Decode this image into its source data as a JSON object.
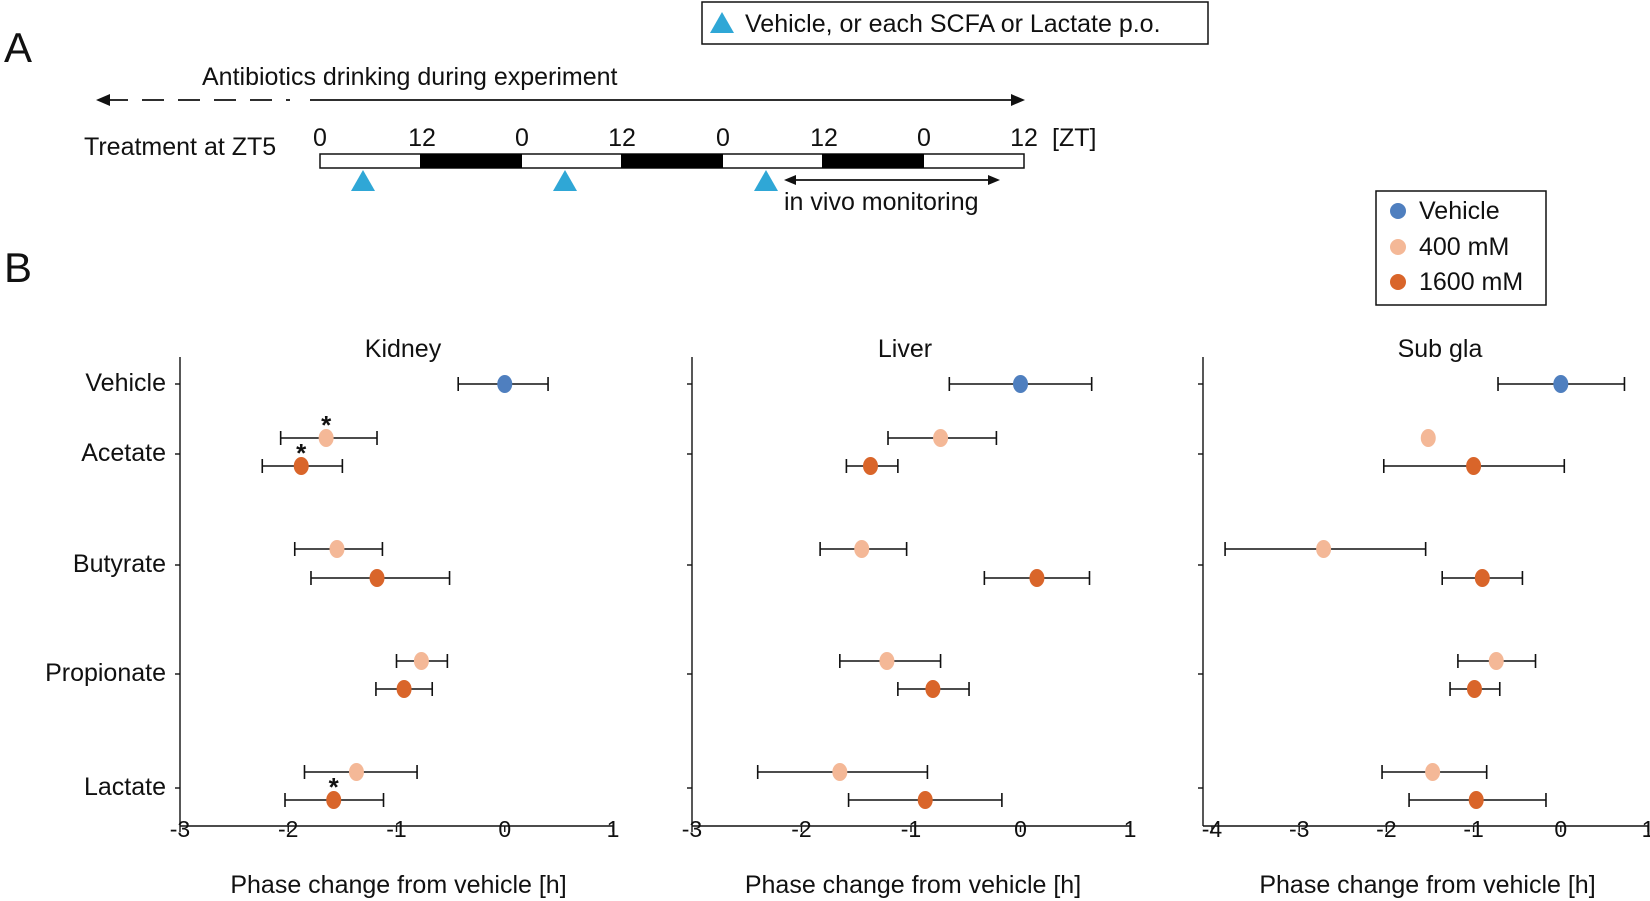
{
  "panel_a": {
    "letter": "A",
    "legend_text": "Vehicle, or each SCFA or Lactate p.o.",
    "antibiotics_text": "Antibiotics drinking during experiment",
    "treatment_label": "Treatment at ZT5",
    "zt_ticks": [
      "0",
      "12",
      "0",
      "12",
      "0",
      "12",
      "0",
      "12"
    ],
    "zt_unit": "[ZT]",
    "monitoring_text": "in vivo monitoring",
    "triangle_color": "#2fa7d6"
  },
  "panel_b": {
    "letter": "B",
    "legend": [
      {
        "label": "Vehicle",
        "color": "#4f7fbf"
      },
      {
        "label": "400 mM",
        "color": "#f4b897"
      },
      {
        "label": "1600 mM",
        "color": "#d9652a"
      }
    ],
    "row_labels": [
      "Vehicle",
      "Acetate",
      "Butyrate",
      "Propionate",
      "Lactate"
    ]
  },
  "chart_data": [
    {
      "type": "scatter",
      "title": "Kidney",
      "xlabel": "Phase change from vehicle [h]",
      "xlim": [
        -3,
        1
      ],
      "xticks": [
        "-3",
        "-2",
        "-1",
        "0",
        "1"
      ],
      "points": [
        {
          "row": "Vehicle",
          "group": "Vehicle",
          "x": 0.0,
          "lo": -0.43,
          "hi": 0.4
        },
        {
          "row": "Acetate",
          "group": "400 mM",
          "x": -1.65,
          "lo": -2.07,
          "hi": -1.18,
          "star": true
        },
        {
          "row": "Acetate",
          "group": "1600 mM",
          "x": -1.88,
          "lo": -2.24,
          "hi": -1.5,
          "star": true
        },
        {
          "row": "Butyrate",
          "group": "400 mM",
          "x": -1.55,
          "lo": -1.94,
          "hi": -1.13
        },
        {
          "row": "Butyrate",
          "group": "1600 mM",
          "x": -1.18,
          "lo": -1.79,
          "hi": -0.51
        },
        {
          "row": "Propionate",
          "group": "400 mM",
          "x": -0.77,
          "lo": -1.0,
          "hi": -0.53
        },
        {
          "row": "Propionate",
          "group": "1600 mM",
          "x": -0.93,
          "lo": -1.19,
          "hi": -0.67
        },
        {
          "row": "Lactate",
          "group": "400 mM",
          "x": -1.37,
          "lo": -1.85,
          "hi": -0.81
        },
        {
          "row": "Lactate",
          "group": "1600 mM",
          "x": -1.58,
          "lo": -2.03,
          "hi": -1.12,
          "star": true
        }
      ]
    },
    {
      "type": "scatter",
      "title": "Liver",
      "xlabel": "Phase change from vehicle [h]",
      "xlim": [
        -3,
        1
      ],
      "xticks": [
        "-3",
        "-2",
        "-1",
        "0",
        "1"
      ],
      "points": [
        {
          "row": "Vehicle",
          "group": "Vehicle",
          "x": 0.0,
          "lo": -0.65,
          "hi": 0.65
        },
        {
          "row": "Acetate",
          "group": "400 mM",
          "x": -0.73,
          "lo": -1.21,
          "hi": -0.22
        },
        {
          "row": "Acetate",
          "group": "1600 mM",
          "x": -1.37,
          "lo": -1.59,
          "hi": -1.12
        },
        {
          "row": "Butyrate",
          "group": "400 mM",
          "x": -1.45,
          "lo": -1.83,
          "hi": -1.04
        },
        {
          "row": "Butyrate",
          "group": "1600 mM",
          "x": 0.15,
          "lo": -0.33,
          "hi": 0.63
        },
        {
          "row": "Propionate",
          "group": "400 mM",
          "x": -1.22,
          "lo": -1.65,
          "hi": -0.73
        },
        {
          "row": "Propionate",
          "group": "1600 mM",
          "x": -0.8,
          "lo": -1.12,
          "hi": -0.47
        },
        {
          "row": "Lactate",
          "group": "400 mM",
          "x": -1.65,
          "lo": -2.4,
          "hi": -0.85
        },
        {
          "row": "Lactate",
          "group": "1600 mM",
          "x": -0.87,
          "lo": -1.57,
          "hi": -0.17
        }
      ]
    },
    {
      "type": "scatter",
      "title": "Sub gla",
      "xlabel": "Phase change from vehicle [h]",
      "xlim": [
        -4,
        1
      ],
      "xticks": [
        "-4",
        "-3",
        "-2",
        "-1",
        "0",
        "1"
      ],
      "points": [
        {
          "row": "Vehicle",
          "group": "Vehicle",
          "x": 0.0,
          "lo": -0.72,
          "hi": 0.73
        },
        {
          "row": "Acetate",
          "group": "400 mM",
          "x": -1.52,
          "lo": null,
          "hi": null
        },
        {
          "row": "Acetate",
          "group": "1600 mM",
          "x": -1.0,
          "lo": -2.03,
          "hi": 0.04
        },
        {
          "row": "Butyrate",
          "group": "400 mM",
          "x": -2.72,
          "lo": -3.85,
          "hi": -1.55
        },
        {
          "row": "Butyrate",
          "group": "1600 mM",
          "x": -0.9,
          "lo": -1.36,
          "hi": -0.44
        },
        {
          "row": "Propionate",
          "group": "400 mM",
          "x": -0.74,
          "lo": -1.18,
          "hi": -0.29
        },
        {
          "row": "Propionate",
          "group": "1600 mM",
          "x": -0.99,
          "lo": -1.27,
          "hi": -0.7
        },
        {
          "row": "Lactate",
          "group": "400 mM",
          "x": -1.47,
          "lo": -2.05,
          "hi": -0.85
        },
        {
          "row": "Lactate",
          "group": "1600 mM",
          "x": -0.97,
          "lo": -1.74,
          "hi": -0.17
        }
      ]
    }
  ]
}
